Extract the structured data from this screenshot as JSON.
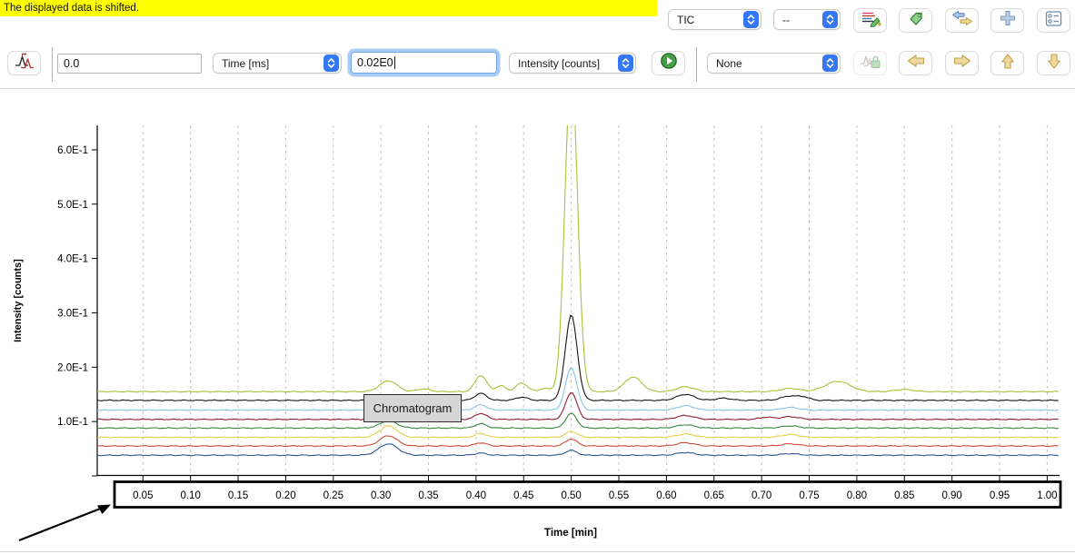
{
  "banner": {
    "text": "The displayed data is shifted.",
    "bg_color": "#ffff00"
  },
  "toolbar_top": {
    "trace_type_select": {
      "value": "TIC"
    },
    "secondary_trace_select": {
      "value": "--"
    },
    "buttons": [
      {
        "name": "save-chromatogram",
        "icon": "chromatogram-save-icon"
      },
      {
        "name": "tag",
        "icon": "tag-icon"
      },
      {
        "name": "transfer",
        "icon": "transfer-arrows-icon"
      },
      {
        "name": "add",
        "icon": "plus-icon"
      },
      {
        "name": "properties",
        "icon": "properties-icon"
      }
    ]
  },
  "toolbar_shift": {
    "shift_button": {
      "icon": "shift-chromatogram-icon"
    },
    "shift_x_input": {
      "value": "0.0"
    },
    "x_unit_select": {
      "value": "Time [ms]"
    },
    "shift_y_input": {
      "value": "0.02E0",
      "focused": true
    },
    "y_unit_select": {
      "value": "Intensity [counts]"
    },
    "execute_button": {
      "icon": "play-icon"
    },
    "display_modus_select": {
      "value": "None"
    },
    "lock_button": {
      "icon": "shift-lock-icon",
      "disabled": true
    },
    "arrow_buttons": [
      {
        "name": "shift-left-button",
        "icon": "arrow-left-icon"
      },
      {
        "name": "shift-right-button",
        "icon": "arrow-right-icon"
      },
      {
        "name": "shift-up-button",
        "icon": "arrow-up-icon"
      },
      {
        "name": "shift-down-button",
        "icon": "arrow-down-icon"
      }
    ]
  },
  "tooltip": {
    "text": "Chromatogram"
  },
  "chart_data": {
    "type": "line",
    "title": "",
    "xlabel": "Time [min]",
    "ylabel": "Intensity [counts]",
    "xlim": [
      0.002,
      1.013
    ],
    "ylim": [
      0,
      0.645
    ],
    "grid": {
      "vertical": true,
      "style": "dashed",
      "color": "#c3c3c3"
    },
    "legend": "none",
    "x_ticks": [
      0.05,
      0.1,
      0.15,
      0.2,
      0.25,
      0.3,
      0.35,
      0.4,
      0.45,
      0.5,
      0.55,
      0.6,
      0.65,
      0.7,
      0.75,
      0.8,
      0.85,
      0.9,
      0.95,
      1.0
    ],
    "x_tick_labels": [
      "0.05",
      "0.10",
      "0.15",
      "0.20",
      "0.25",
      "0.30",
      "0.35",
      "0.40",
      "0.45",
      "0.50",
      "0.55",
      "0.60",
      "0.65",
      "0.70",
      "0.75",
      "0.80",
      "0.85",
      "0.90",
      "0.95",
      "1.00"
    ],
    "y_ticks": [
      {
        "v": 0.1,
        "label": "1.0E-1"
      },
      {
        "v": 0.2,
        "label": "2.0E-1"
      },
      {
        "v": 0.3,
        "label": "3.0E-1"
      },
      {
        "v": 0.4,
        "label": "4.0E-1"
      },
      {
        "v": 0.5,
        "label": "5.0E-1"
      },
      {
        "v": 0.6,
        "label": "6.0E-1"
      }
    ],
    "series": [
      {
        "name": "trace-yellow-green",
        "color": "#a2c338",
        "baseline": 0.155,
        "peaks": [
          [
            0.308,
            0.02,
            0.009
          ],
          [
            0.345,
            0.005,
            0.007
          ],
          [
            0.405,
            0.03,
            0.006
          ],
          [
            0.426,
            0.011,
            0.005
          ],
          [
            0.448,
            0.016,
            0.006
          ],
          [
            0.472,
            0.006,
            0.005
          ],
          [
            0.5,
            0.6,
            0.0065
          ],
          [
            0.565,
            0.027,
            0.009
          ],
          [
            0.62,
            0.009,
            0.009
          ],
          [
            0.73,
            0.006,
            0.01
          ],
          [
            0.78,
            0.019,
            0.013
          ],
          [
            0.85,
            0.004,
            0.01
          ]
        ]
      },
      {
        "name": "trace-black",
        "color": "#161616",
        "baseline": 0.139,
        "peaks": [
          [
            0.308,
            0.01,
            0.009
          ],
          [
            0.405,
            0.013,
            0.006
          ],
          [
            0.448,
            0.006,
            0.006
          ],
          [
            0.5,
            0.157,
            0.0062
          ],
          [
            0.62,
            0.011,
            0.009
          ],
          [
            0.66,
            0.004,
            0.008
          ],
          [
            0.73,
            0.008,
            0.009
          ],
          [
            0.745,
            0.005,
            0.006
          ]
        ]
      },
      {
        "name": "trace-light-blue",
        "color": "#85c3e8",
        "baseline": 0.121,
        "peaks": [
          [
            0.308,
            0.008,
            0.009
          ],
          [
            0.405,
            0.01,
            0.006
          ],
          [
            0.5,
            0.078,
            0.006
          ],
          [
            0.62,
            0.008,
            0.009
          ],
          [
            0.73,
            0.005,
            0.009
          ]
        ]
      },
      {
        "name": "trace-dark-red",
        "color": "#8e1f2f",
        "baseline": 0.104,
        "peaks": [
          [
            0.308,
            0.01,
            0.009
          ],
          [
            0.405,
            0.011,
            0.006
          ],
          [
            0.5,
            0.05,
            0.0058
          ],
          [
            0.62,
            0.007,
            0.009
          ],
          [
            0.705,
            0.004,
            0.007
          ],
          [
            0.73,
            0.005,
            0.009
          ]
        ]
      },
      {
        "name": "trace-green",
        "color": "#35883b",
        "baseline": 0.088,
        "peaks": [
          [
            0.308,
            0.013,
            0.009
          ],
          [
            0.405,
            0.008,
            0.006
          ],
          [
            0.5,
            0.027,
            0.0058
          ],
          [
            0.62,
            0.006,
            0.009
          ],
          [
            0.73,
            0.004,
            0.009
          ]
        ]
      },
      {
        "name": "trace-yellow",
        "color": "#e4cf45",
        "baseline": 0.071,
        "peaks": [
          [
            0.308,
            0.021,
            0.009
          ],
          [
            0.405,
            0.007,
            0.006
          ],
          [
            0.5,
            0.011,
            0.006
          ],
          [
            0.62,
            0.006,
            0.009
          ],
          [
            0.73,
            0.005,
            0.009
          ]
        ]
      },
      {
        "name": "trace-red",
        "color": "#cc4b37",
        "baseline": 0.055,
        "peaks": [
          [
            0.308,
            0.019,
            0.009
          ],
          [
            0.405,
            0.006,
            0.006
          ],
          [
            0.5,
            0.013,
            0.006
          ],
          [
            0.62,
            0.006,
            0.009
          ],
          [
            0.73,
            0.004,
            0.009
          ]
        ]
      },
      {
        "name": "trace-dark-blue",
        "color": "#2a5793",
        "baseline": 0.038,
        "peaks": [
          [
            0.308,
            0.021,
            0.01
          ],
          [
            0.405,
            0.004,
            0.006
          ],
          [
            0.5,
            0.009,
            0.006
          ],
          [
            0.62,
            0.005,
            0.009
          ],
          [
            0.73,
            0.003,
            0.009
          ]
        ]
      }
    ]
  }
}
